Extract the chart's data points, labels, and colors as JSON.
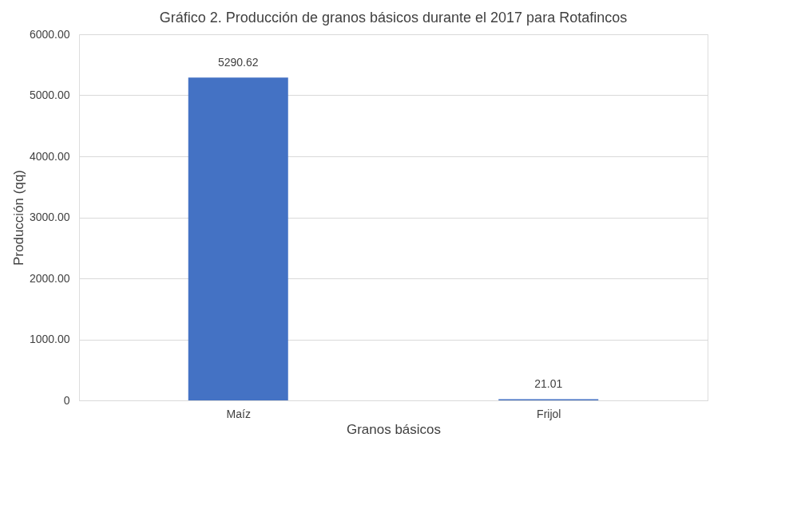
{
  "chart_data": {
    "type": "bar",
    "title": "Gráfico 2. Producción de granos básicos durante el 2017 para Rotafincos",
    "xlabel": "Granos básicos",
    "ylabel": "Producción (qq)",
    "categories": [
      "Maíz",
      "Frijol"
    ],
    "values": [
      5290.62,
      21.01
    ],
    "color": "#4472c4",
    "ylim": [
      0,
      6000
    ],
    "yticks": [
      0,
      {
        "value": 1000,
        "label": "1000.00"
      },
      {
        "value": 2000,
        "label": "2000.00"
      },
      {
        "value": 3000,
        "label": "3000.00"
      },
      {
        "value": 4000,
        "label": "4000.00"
      },
      {
        "value": 5000,
        "label": "5000.00"
      },
      {
        "value": 6000,
        "label": "6000.00"
      }
    ],
    "grid": "y",
    "data_labels": true
  }
}
